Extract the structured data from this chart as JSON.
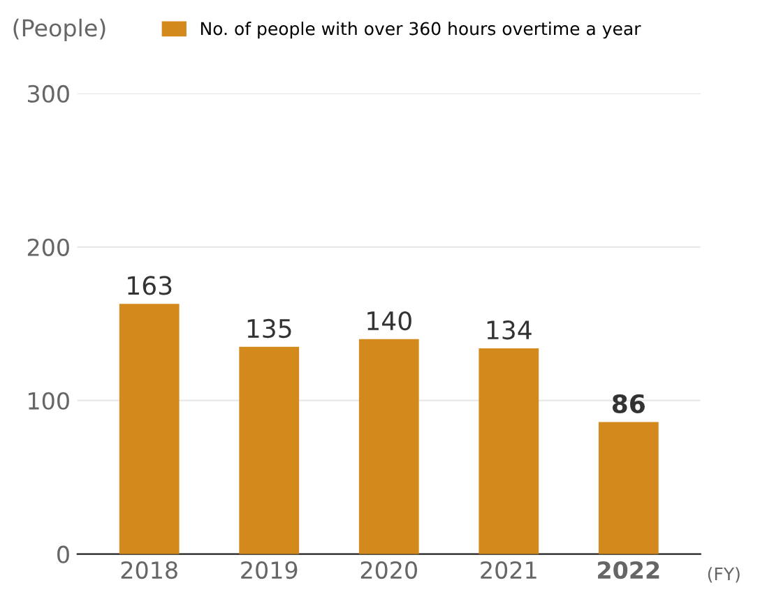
{
  "chart_data": {
    "type": "bar",
    "ylabel": "(People)",
    "xlabel": "(FY)",
    "categories": [
      "2018",
      "2019",
      "2020",
      "2021",
      "2022"
    ],
    "series": [
      {
        "name": "No. of people with over 360 hours overtime a year",
        "color": "#d4891c",
        "values": [
          163,
          135,
          140,
          134,
          86
        ]
      }
    ],
    "ylim": [
      0,
      300
    ],
    "yticks": [
      0,
      100,
      200,
      300
    ],
    "grid": "y",
    "legend": "top",
    "data_labels": true
  }
}
